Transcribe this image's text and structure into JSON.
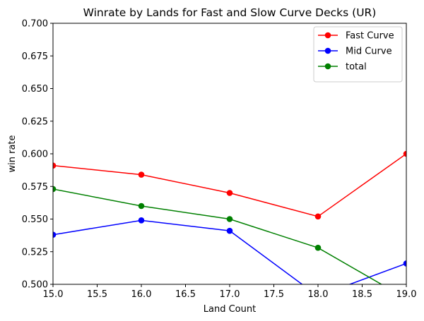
{
  "chart_data": {
    "type": "line",
    "title": "Winrate by Lands for Fast and Slow Curve Decks (UR)",
    "xlabel": "Land Count",
    "ylabel": "win rate",
    "xlim": [
      15.0,
      19.0
    ],
    "ylim": [
      0.5,
      0.7
    ],
    "xticks": [
      "15.0",
      "15.5",
      "16.0",
      "16.5",
      "17.0",
      "17.5",
      "18.0",
      "18.5",
      "19.0"
    ],
    "yticks": [
      "0.500",
      "0.525",
      "0.550",
      "0.575",
      "0.600",
      "0.625",
      "0.650",
      "0.675",
      "0.700"
    ],
    "grid": false,
    "legend_position": "top-right",
    "x": [
      15,
      16,
      17,
      18,
      19
    ],
    "series": [
      {
        "name": "Fast Curve",
        "color": "#ff0000",
        "values": [
          0.591,
          0.584,
          0.57,
          0.552,
          0.6
        ]
      },
      {
        "name": "Mid Curve",
        "color": "#0000ff",
        "values": [
          0.538,
          0.549,
          0.541,
          0.491,
          0.516
        ]
      },
      {
        "name": "total",
        "color": "#008000",
        "values": [
          0.573,
          0.56,
          0.55,
          0.528,
          0.489
        ]
      }
    ]
  }
}
